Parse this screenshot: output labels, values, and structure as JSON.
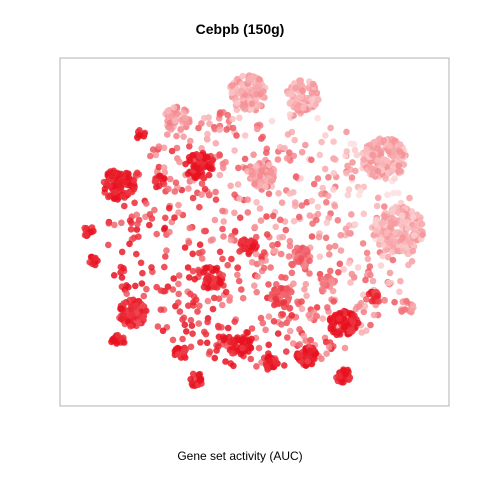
{
  "chart_data": {
    "type": "scatter",
    "title": "Cebpb (150g)",
    "caption": "Gene set activity (AUC)",
    "xlabel": "",
    "ylabel": "",
    "xlim": [
      0,
      100
    ],
    "ylim": [
      0,
      100
    ],
    "axes_ticks": false,
    "grid": false,
    "color_scale": {
      "low": "#fde0e0",
      "high": "#e8101e"
    },
    "clusters": [
      {
        "x": 48,
        "y": 92,
        "r": 5.0,
        "n": 110,
        "activity": 0.25
      },
      {
        "x": 63,
        "y": 91,
        "r": 4.5,
        "n": 90,
        "activity": 0.25
      },
      {
        "x": 29,
        "y": 84,
        "r": 3.5,
        "n": 50,
        "activity": 0.35
      },
      {
        "x": 85,
        "y": 72,
        "r": 6.0,
        "n": 150,
        "activity": 0.25
      },
      {
        "x": 89,
        "y": 50,
        "r": 7.0,
        "n": 170,
        "activity": 0.22
      },
      {
        "x": 35,
        "y": 70,
        "r": 4.0,
        "n": 70,
        "activity": 0.95
      },
      {
        "x": 13,
        "y": 64,
        "r": 4.5,
        "n": 90,
        "activity": 0.95
      },
      {
        "x": 17,
        "y": 25,
        "r": 4.0,
        "n": 80,
        "activity": 0.85
      },
      {
        "x": 74,
        "y": 22,
        "r": 4.0,
        "n": 80,
        "activity": 0.95
      },
      {
        "x": 46,
        "y": 15,
        "r": 3.0,
        "n": 40,
        "activity": 0.95
      },
      {
        "x": 64,
        "y": 12,
        "r": 3.0,
        "n": 45,
        "activity": 0.9
      },
      {
        "x": 54,
        "y": 10,
        "r": 2.2,
        "n": 25,
        "activity": 0.95
      },
      {
        "x": 34,
        "y": 5,
        "r": 2.0,
        "n": 20,
        "activity": 0.9
      },
      {
        "x": 74,
        "y": 6,
        "r": 2.2,
        "n": 25,
        "activity": 0.95
      },
      {
        "x": 91,
        "y": 27,
        "r": 2.0,
        "n": 18,
        "activity": 0.4
      },
      {
        "x": 82,
        "y": 30,
        "r": 2.0,
        "n": 18,
        "activity": 0.85
      },
      {
        "x": 5,
        "y": 50,
        "r": 1.5,
        "n": 12,
        "activity": 0.95
      },
      {
        "x": 6,
        "y": 41,
        "r": 1.5,
        "n": 12,
        "activity": 0.95
      },
      {
        "x": 24,
        "y": 65,
        "r": 1.8,
        "n": 15,
        "activity": 0.9
      },
      {
        "x": 19,
        "y": 79,
        "r": 1.5,
        "n": 12,
        "activity": 0.9
      },
      {
        "x": 48,
        "y": 45,
        "r": 2.5,
        "n": 30,
        "activity": 0.95
      },
      {
        "x": 70,
        "y": 35,
        "r": 2.0,
        "n": 20,
        "activity": 0.5
      },
      {
        "x": 13,
        "y": 17,
        "r": 2.0,
        "n": 20,
        "activity": 0.95
      },
      {
        "x": 30,
        "y": 13,
        "r": 1.8,
        "n": 18,
        "activity": 0.9
      },
      {
        "x": 52,
        "y": 67,
        "r": 3.5,
        "n": 50,
        "activity": 0.3
      },
      {
        "x": 62,
        "y": 42,
        "r": 3.0,
        "n": 40,
        "activity": 0.55
      },
      {
        "x": 38,
        "y": 36,
        "r": 3.5,
        "n": 50,
        "activity": 0.9
      },
      {
        "x": 57,
        "y": 30,
        "r": 3.0,
        "n": 40,
        "activity": 0.7
      }
    ]
  }
}
